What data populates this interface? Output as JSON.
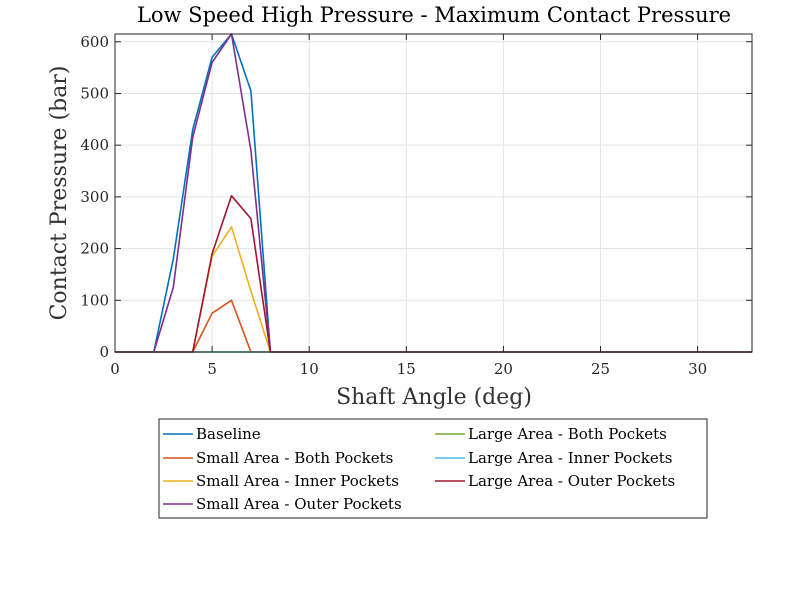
{
  "chart_data": {
    "type": "line",
    "title": "Low Speed High Pressure - Maximum Contact Pressure",
    "xlabel": "Shaft Angle (deg)",
    "ylabel": "Contact Pressure (bar)",
    "xlim": [
      0,
      32.8
    ],
    "ylim": [
      0,
      615
    ],
    "xticks": [
      0,
      5,
      10,
      15,
      20,
      25,
      30
    ],
    "yticks": [
      0,
      100,
      200,
      300,
      400,
      500,
      600
    ],
    "grid": true,
    "legend_location": "below",
    "series": [
      {
        "name": "Baseline",
        "color": "#0072BD",
        "x": [
          0,
          1,
          2,
          3,
          4,
          5,
          6,
          7,
          8,
          9,
          10,
          32.8
        ],
        "y": [
          0,
          0,
          0,
          180,
          430,
          570,
          615,
          505,
          0,
          0,
          0,
          0
        ]
      },
      {
        "name": "Small Area - Both Pockets",
        "color": "#D95319",
        "x": [
          0,
          1,
          2,
          3,
          4,
          5,
          6,
          7,
          8,
          32.8
        ],
        "y": [
          0,
          0,
          0,
          0,
          0,
          75,
          100,
          0,
          0,
          0
        ]
      },
      {
        "name": "Small Area - Inner Pockets",
        "color": "#EDB120",
        "x": [
          0,
          1,
          2,
          3,
          4,
          5,
          6,
          7,
          8,
          32.8
        ],
        "y": [
          0,
          0,
          0,
          0,
          0,
          185,
          242,
          118,
          0,
          0
        ]
      },
      {
        "name": "Small Area - Outer Pockets",
        "color": "#7E2F8E",
        "x": [
          0,
          1,
          2,
          3,
          4,
          5,
          6,
          7,
          8,
          32.8
        ],
        "y": [
          0,
          0,
          0,
          125,
          415,
          560,
          615,
          390,
          0,
          0
        ]
      },
      {
        "name": "Large Area - Both Pockets",
        "color": "#77AC30",
        "x": [
          0,
          32.8
        ],
        "y": [
          0,
          0
        ]
      },
      {
        "name": "Large Area - Inner Pockets",
        "color": "#4DBEEE",
        "x": [
          0,
          32.8
        ],
        "y": [
          0,
          0
        ]
      },
      {
        "name": "Large Area - Outer Pockets",
        "color": "#A2142F",
        "x": [
          0,
          1,
          2,
          3,
          4,
          5,
          6,
          7,
          8,
          32.8
        ],
        "y": [
          0,
          0,
          0,
          0,
          0,
          190,
          302,
          258,
          0,
          0
        ]
      }
    ]
  }
}
